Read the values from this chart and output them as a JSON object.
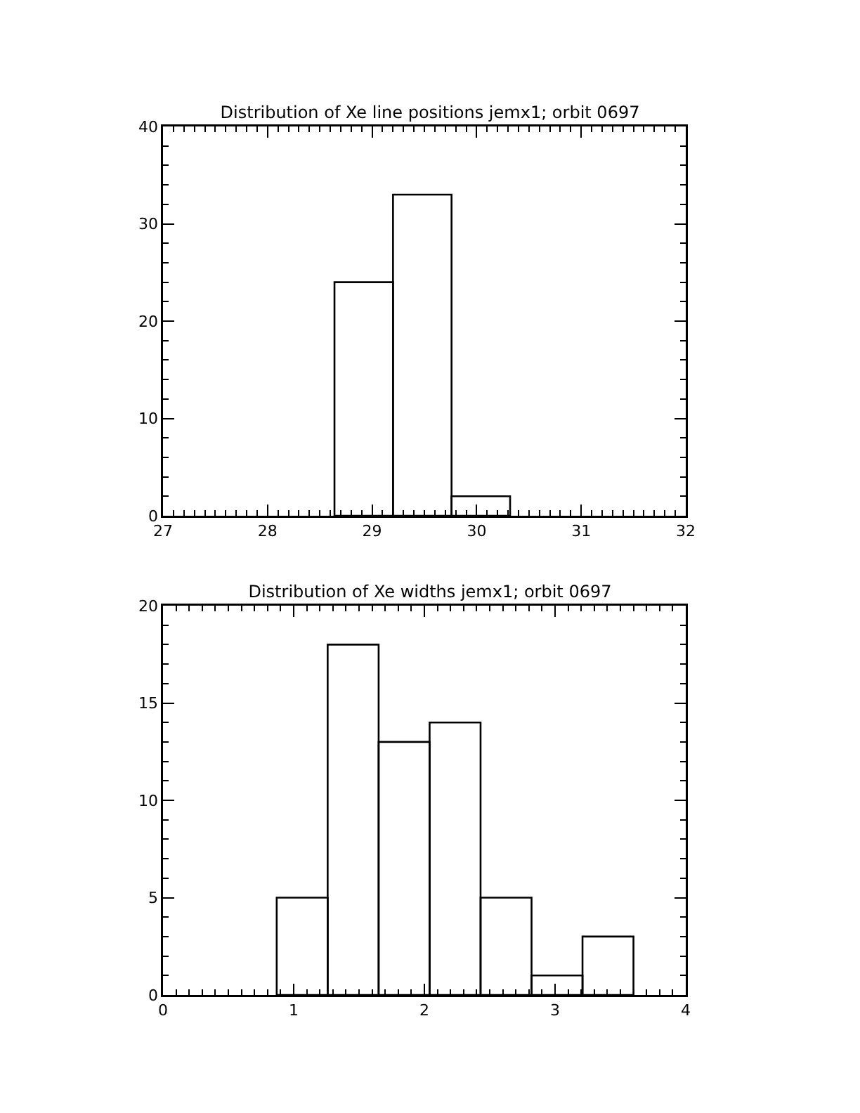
{
  "chart_data": [
    {
      "type": "histogram",
      "title": "Distribution of Xe line positions jemx1; orbit 0697",
      "bins": [
        28.64,
        29.2,
        29.76,
        30.32
      ],
      "values": [
        24,
        33,
        2
      ],
      "color": "#000000",
      "xlim": [
        27,
        32
      ],
      "xticks": [
        27,
        28,
        29,
        30,
        31,
        32
      ],
      "ylim": [
        0,
        40
      ],
      "yticks": [
        0,
        10,
        20,
        30,
        40
      ],
      "grid": false
    },
    {
      "type": "histogram",
      "title": "Distribution of Xe widths jemx1; orbit 0697",
      "bins": [
        0.87,
        1.26,
        1.65,
        2.04,
        2.43,
        2.82,
        3.21,
        3.6
      ],
      "values": [
        5,
        18,
        13,
        14,
        5,
        1,
        3
      ],
      "color": "#000000",
      "xlim": [
        0,
        4
      ],
      "xticks": [
        0,
        1,
        2,
        3,
        4
      ],
      "ylim": [
        0,
        20
      ],
      "yticks": [
        0,
        5,
        10,
        15,
        20
      ],
      "grid": false
    }
  ]
}
